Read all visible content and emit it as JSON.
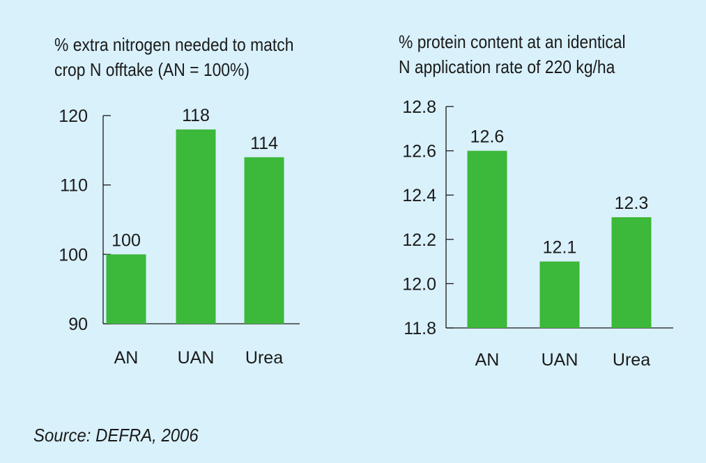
{
  "colors": {
    "background": "#d9f1fb",
    "bar": "#3cb83a",
    "axis": "#1a1a1a",
    "text": "#1a1a1a"
  },
  "source": "Source: DEFRA, 2006",
  "chart_data": [
    {
      "type": "bar",
      "title_lines": [
        "% extra nitrogen needed to match",
        "crop N offtake (AN = 100%)"
      ],
      "categories": [
        "AN",
        "UAN",
        "Urea"
      ],
      "values": [
        100,
        118,
        114
      ],
      "value_labels": [
        "100",
        "118",
        "114"
      ],
      "ylim": [
        90,
        120
      ],
      "yticks": [
        90,
        100,
        110,
        120
      ],
      "ytick_labels": [
        "90",
        "100",
        "110",
        "120"
      ],
      "grid": false
    },
    {
      "type": "bar",
      "title_lines": [
        "% protein content at an identical",
        "N application rate of 220 kg/ha"
      ],
      "categories": [
        "AN",
        "UAN",
        "Urea"
      ],
      "values": [
        12.6,
        12.1,
        12.3
      ],
      "value_labels": [
        "12.6",
        "12.1",
        "12.3"
      ],
      "ylim": [
        11.8,
        12.8
      ],
      "yticks": [
        11.8,
        12.0,
        12.2,
        12.4,
        12.6,
        12.8
      ],
      "ytick_labels": [
        "11.8",
        "12.0",
        "12.2",
        "12.4",
        "12.6",
        "12.8"
      ],
      "grid": false
    }
  ]
}
